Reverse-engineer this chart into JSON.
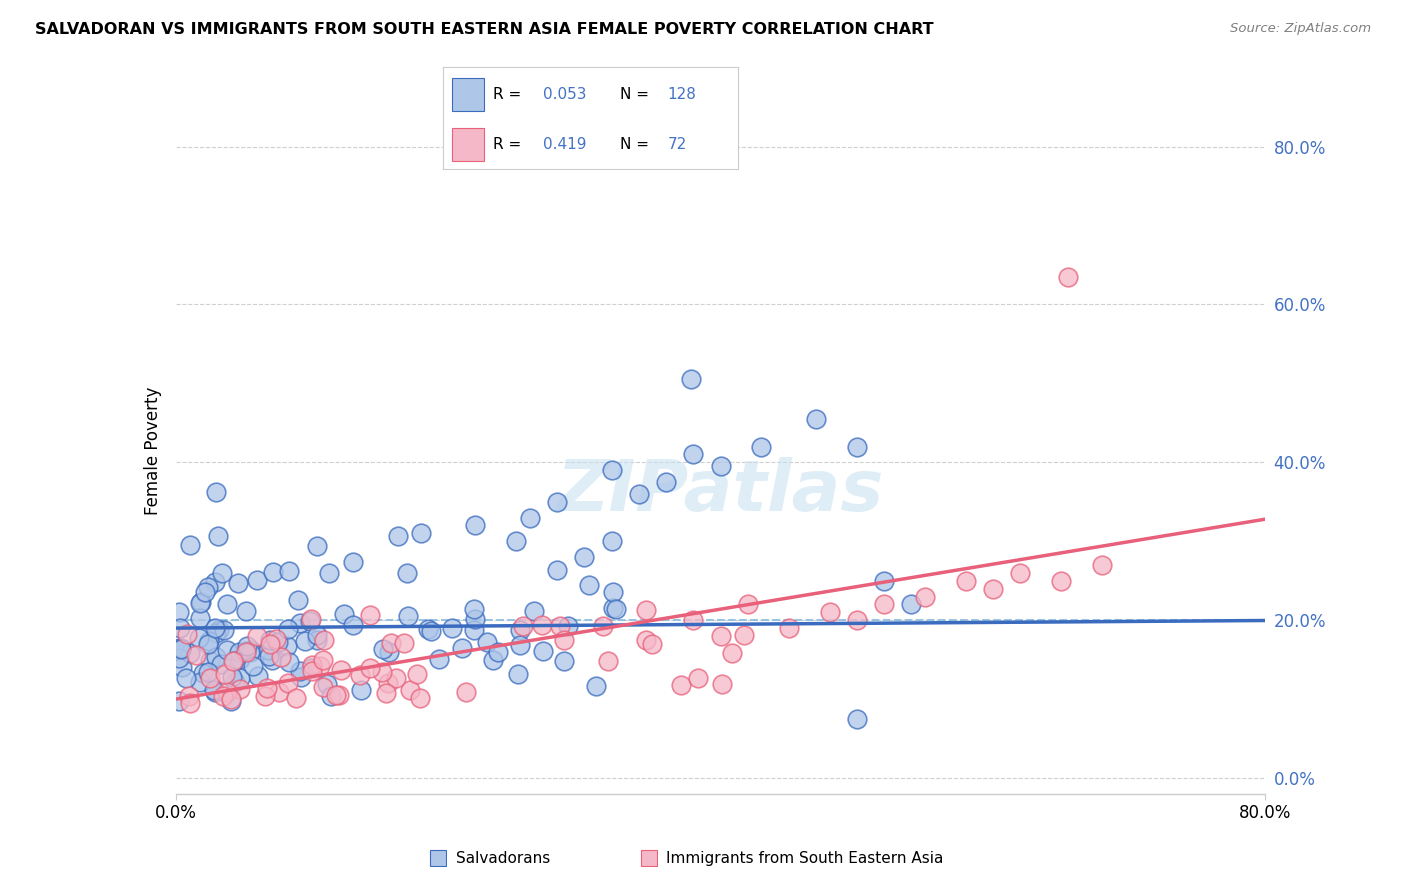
{
  "title": "SALVADORAN VS IMMIGRANTS FROM SOUTH EASTERN ASIA FEMALE POVERTY CORRELATION CHART",
  "source": "Source: ZipAtlas.com",
  "ylabel": "Female Poverty",
  "blue_color": "#aec6e8",
  "pink_color": "#f5b8c8",
  "blue_line_color": "#3a6bbf",
  "pink_line_color": "#e8607a",
  "dashed_line_color": "#90bfdf",
  "legend_color": "#4472c4",
  "R_blue": "0.053",
  "N_blue": "128",
  "R_pink": "0.419",
  "N_pink": "72",
  "blue_intercept": 0.19,
  "blue_slope": 0.012,
  "pink_intercept": 0.1,
  "pink_slope": 0.285,
  "xlim": [
    0.0,
    0.8
  ],
  "ylim": [
    -0.02,
    0.85
  ],
  "yticks": [
    0.0,
    0.2,
    0.4,
    0.6,
    0.8
  ],
  "ytick_labels": [
    "0.0%",
    "20.0%",
    "40.0%",
    "60.0%",
    "80.0%"
  ],
  "xtick_labels": [
    "0.0%",
    "80.0%"
  ],
  "watermark": "ZIPatlas",
  "legend_label_1": "Salvadorans",
  "legend_label_2": "Immigrants from South Eastern Asia"
}
